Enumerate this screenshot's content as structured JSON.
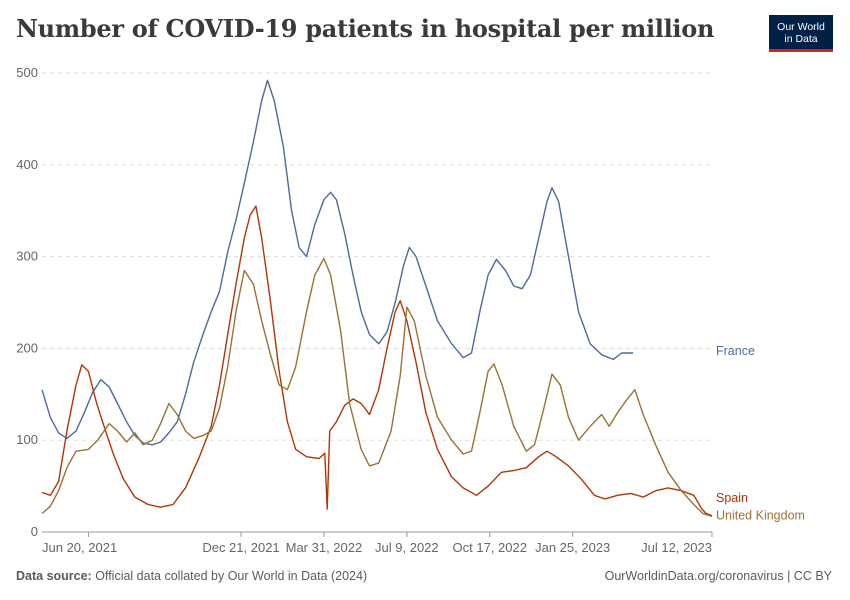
{
  "header": {
    "title": "Number of COVID-19 patients in hospital per million",
    "logo_line1": "Our World",
    "logo_line2": "in Data"
  },
  "footer": {
    "source_label": "Data source:",
    "source_text": "Official data collated by Our World in Data (2024)",
    "right_text": "OurWorldinData.org/coronavirus | CC BY"
  },
  "chart_data": {
    "type": "line",
    "title": "Number of COVID-19 patients in hospital per million",
    "ylim": [
      0,
      500
    ],
    "y_ticks": [
      0,
      100,
      200,
      300,
      400,
      500
    ],
    "x_range": [
      "2021-04-25",
      "2023-07-12"
    ],
    "x_tick_labels": [
      {
        "date": "2021-06-20",
        "label": "Jun 20, 2021"
      },
      {
        "date": "2021-12-21",
        "label": "Dec 21, 2021"
      },
      {
        "date": "2022-03-31",
        "label": "Mar 31, 2022"
      },
      {
        "date": "2022-07-09",
        "label": "Jul 9, 2022"
      },
      {
        "date": "2022-10-17",
        "label": "Oct 17, 2022"
      },
      {
        "date": "2023-01-25",
        "label": "Jan 25, 2023"
      },
      {
        "date": "2023-07-12",
        "label": "Jul 12, 2023"
      }
    ],
    "grid": true,
    "series": [
      {
        "name": "France",
        "color": "#4c6a9c",
        "points": [
          [
            "2021-04-25",
            155
          ],
          [
            "2021-05-05",
            125
          ],
          [
            "2021-05-15",
            108
          ],
          [
            "2021-05-25",
            102
          ],
          [
            "2021-06-05",
            110
          ],
          [
            "2021-06-15",
            130
          ],
          [
            "2021-06-25",
            152
          ],
          [
            "2021-07-05",
            166
          ],
          [
            "2021-07-15",
            158
          ],
          [
            "2021-07-25",
            140
          ],
          [
            "2021-08-05",
            120
          ],
          [
            "2021-08-15",
            105
          ],
          [
            "2021-08-25",
            97
          ],
          [
            "2021-09-05",
            95
          ],
          [
            "2021-09-15",
            98
          ],
          [
            "2021-09-25",
            108
          ],
          [
            "2021-10-05",
            120
          ],
          [
            "2021-10-15",
            150
          ],
          [
            "2021-10-25",
            185
          ],
          [
            "2021-11-05",
            215
          ],
          [
            "2021-11-15",
            240
          ],
          [
            "2021-11-25",
            262
          ],
          [
            "2021-12-05",
            305
          ],
          [
            "2021-12-15",
            340
          ],
          [
            "2021-12-25",
            380
          ],
          [
            "2022-01-05",
            425
          ],
          [
            "2022-01-15",
            470
          ],
          [
            "2022-01-22",
            492
          ],
          [
            "2022-01-30",
            470
          ],
          [
            "2022-02-10",
            420
          ],
          [
            "2022-02-20",
            350
          ],
          [
            "2022-03-01",
            310
          ],
          [
            "2022-03-10",
            300
          ],
          [
            "2022-03-20",
            335
          ],
          [
            "2022-03-31",
            362
          ],
          [
            "2022-04-08",
            370
          ],
          [
            "2022-04-15",
            362
          ],
          [
            "2022-04-25",
            325
          ],
          [
            "2022-05-05",
            280
          ],
          [
            "2022-05-15",
            240
          ],
          [
            "2022-05-25",
            215
          ],
          [
            "2022-06-05",
            205
          ],
          [
            "2022-06-15",
            218
          ],
          [
            "2022-06-25",
            250
          ],
          [
            "2022-07-05",
            290
          ],
          [
            "2022-07-12",
            310
          ],
          [
            "2022-07-20",
            300
          ],
          [
            "2022-08-01",
            268
          ],
          [
            "2022-08-15",
            230
          ],
          [
            "2022-09-01",
            205
          ],
          [
            "2022-09-15",
            190
          ],
          [
            "2022-09-25",
            195
          ],
          [
            "2022-10-05",
            240
          ],
          [
            "2022-10-15",
            280
          ],
          [
            "2022-10-25",
            297
          ],
          [
            "2022-11-05",
            285
          ],
          [
            "2022-11-15",
            268
          ],
          [
            "2022-11-25",
            265
          ],
          [
            "2022-12-05",
            280
          ],
          [
            "2022-12-15",
            320
          ],
          [
            "2022-12-25",
            360
          ],
          [
            "2022-12-31",
            375
          ],
          [
            "2023-01-08",
            360
          ],
          [
            "2023-01-20",
            300
          ],
          [
            "2023-02-01",
            240
          ],
          [
            "2023-02-15",
            205
          ],
          [
            "2023-03-01",
            193
          ],
          [
            "2023-03-15",
            188
          ],
          [
            "2023-03-25",
            195
          ],
          [
            "2023-04-08",
            195
          ]
        ]
      },
      {
        "name": "Spain",
        "color": "#b13507",
        "points": [
          [
            "2021-04-25",
            43
          ],
          [
            "2021-05-05",
            40
          ],
          [
            "2021-05-15",
            55
          ],
          [
            "2021-05-25",
            110
          ],
          [
            "2021-06-05",
            160
          ],
          [
            "2021-06-12",
            182
          ],
          [
            "2021-06-20",
            175
          ],
          [
            "2021-06-30",
            140
          ],
          [
            "2021-07-10",
            112
          ],
          [
            "2021-07-20",
            85
          ],
          [
            "2021-08-01",
            58
          ],
          [
            "2021-08-15",
            38
          ],
          [
            "2021-08-31",
            30
          ],
          [
            "2021-09-15",
            27
          ],
          [
            "2021-09-30",
            30
          ],
          [
            "2021-10-15",
            48
          ],
          [
            "2021-10-31",
            80
          ],
          [
            "2021-11-15",
            115
          ],
          [
            "2021-11-25",
            160
          ],
          [
            "2021-12-05",
            215
          ],
          [
            "2021-12-15",
            270
          ],
          [
            "2021-12-25",
            320
          ],
          [
            "2022-01-01",
            345
          ],
          [
            "2022-01-08",
            355
          ],
          [
            "2022-01-15",
            320
          ],
          [
            "2022-01-25",
            255
          ],
          [
            "2022-02-05",
            175
          ],
          [
            "2022-02-15",
            120
          ],
          [
            "2022-02-25",
            90
          ],
          [
            "2022-03-10",
            82
          ],
          [
            "2022-03-25",
            80
          ],
          [
            "2022-04-01",
            86
          ],
          [
            "2022-04-04",
            25
          ],
          [
            "2022-04-07",
            110
          ],
          [
            "2022-04-15",
            120
          ],
          [
            "2022-04-25",
            138
          ],
          [
            "2022-05-05",
            145
          ],
          [
            "2022-05-15",
            140
          ],
          [
            "2022-05-25",
            128
          ],
          [
            "2022-06-05",
            155
          ],
          [
            "2022-06-15",
            200
          ],
          [
            "2022-06-25",
            240
          ],
          [
            "2022-07-01",
            252
          ],
          [
            "2022-07-09",
            230
          ],
          [
            "2022-07-20",
            185
          ],
          [
            "2022-08-01",
            130
          ],
          [
            "2022-08-15",
            90
          ],
          [
            "2022-09-01",
            60
          ],
          [
            "2022-09-15",
            48
          ],
          [
            "2022-10-01",
            40
          ],
          [
            "2022-10-15",
            50
          ],
          [
            "2022-10-31",
            65
          ],
          [
            "2022-11-15",
            67
          ],
          [
            "2022-11-30",
            70
          ],
          [
            "2022-12-15",
            82
          ],
          [
            "2022-12-25",
            88
          ],
          [
            "2023-01-05",
            82
          ],
          [
            "2023-01-20",
            72
          ],
          [
            "2023-02-05",
            57
          ],
          [
            "2023-02-20",
            40
          ],
          [
            "2023-03-05",
            36
          ],
          [
            "2023-03-20",
            40
          ],
          [
            "2023-04-05",
            42
          ],
          [
            "2023-04-20",
            38
          ],
          [
            "2023-05-05",
            45
          ],
          [
            "2023-05-20",
            48
          ],
          [
            "2023-06-05",
            45
          ],
          [
            "2023-06-20",
            40
          ],
          [
            "2023-06-30",
            25
          ],
          [
            "2023-07-05",
            20
          ],
          [
            "2023-07-12",
            18
          ]
        ]
      },
      {
        "name": "United Kingdom",
        "color": "#9a7234",
        "points": [
          [
            "2021-04-25",
            20
          ],
          [
            "2021-05-05",
            28
          ],
          [
            "2021-05-15",
            45
          ],
          [
            "2021-05-25",
            70
          ],
          [
            "2021-06-05",
            88
          ],
          [
            "2021-06-20",
            90
          ],
          [
            "2021-07-01",
            100
          ],
          [
            "2021-07-15",
            118
          ],
          [
            "2021-07-25",
            110
          ],
          [
            "2021-08-05",
            98
          ],
          [
            "2021-08-15",
            108
          ],
          [
            "2021-08-25",
            95
          ],
          [
            "2021-09-05",
            100
          ],
          [
            "2021-09-15",
            118
          ],
          [
            "2021-09-25",
            140
          ],
          [
            "2021-10-05",
            128
          ],
          [
            "2021-10-15",
            110
          ],
          [
            "2021-10-25",
            102
          ],
          [
            "2021-11-05",
            105
          ],
          [
            "2021-11-15",
            110
          ],
          [
            "2021-11-25",
            135
          ],
          [
            "2021-12-05",
            180
          ],
          [
            "2021-12-15",
            240
          ],
          [
            "2021-12-25",
            285
          ],
          [
            "2022-01-05",
            270
          ],
          [
            "2022-01-15",
            230
          ],
          [
            "2022-01-25",
            195
          ],
          [
            "2022-02-05",
            160
          ],
          [
            "2022-02-15",
            155
          ],
          [
            "2022-02-25",
            180
          ],
          [
            "2022-03-10",
            240
          ],
          [
            "2022-03-20",
            280
          ],
          [
            "2022-03-31",
            298
          ],
          [
            "2022-04-08",
            280
          ],
          [
            "2022-04-20",
            220
          ],
          [
            "2022-05-01",
            140
          ],
          [
            "2022-05-15",
            90
          ],
          [
            "2022-05-25",
            72
          ],
          [
            "2022-06-05",
            75
          ],
          [
            "2022-06-20",
            110
          ],
          [
            "2022-07-01",
            170
          ],
          [
            "2022-07-09",
            245
          ],
          [
            "2022-07-18",
            230
          ],
          [
            "2022-08-01",
            170
          ],
          [
            "2022-08-15",
            125
          ],
          [
            "2022-09-01",
            100
          ],
          [
            "2022-09-15",
            85
          ],
          [
            "2022-09-25",
            88
          ],
          [
            "2022-10-05",
            130
          ],
          [
            "2022-10-15",
            175
          ],
          [
            "2022-10-22",
            183
          ],
          [
            "2022-11-01",
            160
          ],
          [
            "2022-11-15",
            115
          ],
          [
            "2022-11-30",
            88
          ],
          [
            "2022-12-10",
            95
          ],
          [
            "2022-12-20",
            130
          ],
          [
            "2022-12-31",
            172
          ],
          [
            "2023-01-10",
            160
          ],
          [
            "2023-01-20",
            125
          ],
          [
            "2023-02-01",
            100
          ],
          [
            "2023-02-15",
            115
          ],
          [
            "2023-03-01",
            128
          ],
          [
            "2023-03-10",
            115
          ],
          [
            "2023-03-20",
            130
          ],
          [
            "2023-04-01",
            145
          ],
          [
            "2023-04-10",
            155
          ],
          [
            "2023-04-20",
            128
          ],
          [
            "2023-05-05",
            95
          ],
          [
            "2023-05-20",
            65
          ],
          [
            "2023-06-05",
            45
          ],
          [
            "2023-06-20",
            30
          ],
          [
            "2023-07-01",
            20
          ],
          [
            "2023-07-12",
            17
          ]
        ]
      }
    ]
  }
}
